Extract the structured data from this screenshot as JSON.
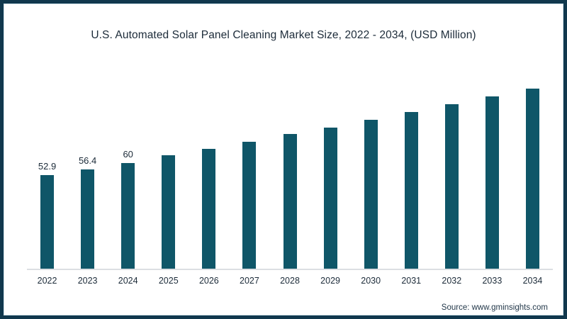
{
  "page": {
    "title": "U.S. Automated Solar Panel Cleaning Market Size, 2022 - 2034,  (USD Million)",
    "source": "Source: www.gminsights.com"
  },
  "theme": {
    "bar_color": "#0f5668",
    "frame_border_color": "#11384d",
    "frame_inner_line_color": "#cfe4ec",
    "axis_line_color": "#dcdfe2",
    "text_color": "#1c2b39",
    "background": "#ffffff"
  },
  "chart_data": {
    "type": "bar",
    "title": "U.S. Automated Solar Panel Cleaning Market Size, 2022 - 2034,  (USD Million)",
    "categories": [
      "2022",
      "2023",
      "2024",
      "2025",
      "2026",
      "2027",
      "2028",
      "2029",
      "2030",
      "2031",
      "2032",
      "2033",
      "2034"
    ],
    "values": [
      52.9,
      56.4,
      60,
      64.2,
      67.8,
      71.9,
      76.2,
      80,
      84.4,
      88.9,
      93.3,
      97.6,
      102
    ],
    "data_labels": [
      "52.9",
      "56.4",
      "60",
      "",
      "",
      "",
      "",
      "",
      "",
      "",
      "",
      "",
      ""
    ],
    "xlabel": "",
    "ylabel": "",
    "ylim": [
      0,
      110
    ],
    "grid": false,
    "legend": false,
    "source": "Source: www.gminsights.com"
  }
}
